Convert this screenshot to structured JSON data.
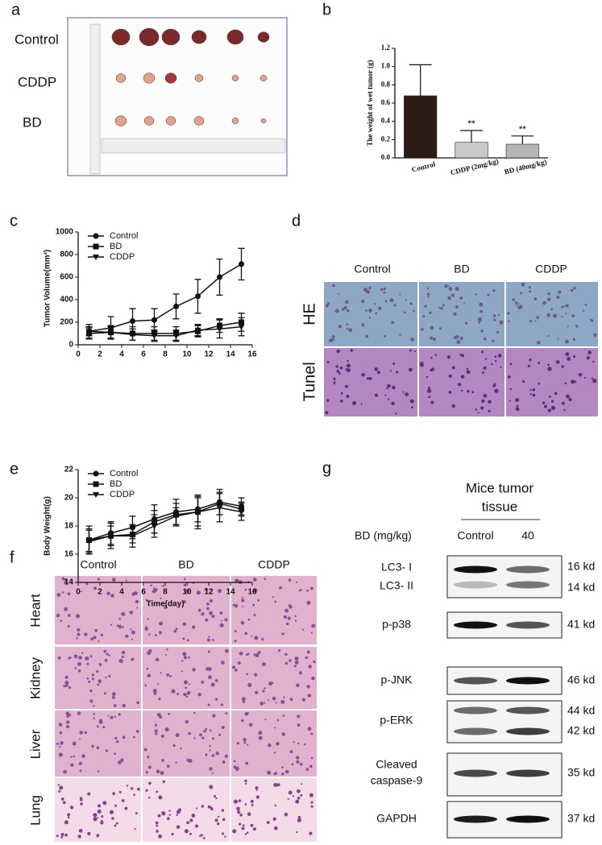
{
  "panels": {
    "a": {
      "label": "a",
      "rows": [
        "Control",
        "CDDP",
        "BD"
      ]
    },
    "b": {
      "label": "b"
    },
    "c": {
      "label": "c"
    },
    "d": {
      "label": "d",
      "columns": [
        "Control",
        "BD",
        "CDDP"
      ],
      "rows": [
        "HE",
        "Tunel"
      ]
    },
    "e": {
      "label": "e"
    },
    "f": {
      "label": "f",
      "columns": [
        "Control",
        "BD",
        "CDDP"
      ],
      "rows": [
        "Heart",
        "Kidney",
        "Liver",
        "Lung"
      ]
    },
    "g": {
      "label": "g",
      "title_lines": [
        "Mice tumor",
        "tissue"
      ],
      "dose_label": "BD (mg/kg)",
      "lanes": [
        "Control",
        "40"
      ],
      "blots": [
        {
          "names": [
            "LC3- I",
            "LC3- II"
          ],
          "sizes": [
            "16 kd",
            "14 kd"
          ]
        },
        {
          "names": [
            "p-p38"
          ],
          "sizes": [
            "41 kd"
          ]
        },
        {
          "names": [
            "p-JNK"
          ],
          "sizes": [
            "46 kd"
          ]
        },
        {
          "names": [
            "p-ERK"
          ],
          "sizes": [
            "44 kd",
            "42 kd"
          ]
        },
        {
          "names": [
            "Cleaved",
            "caspase-9"
          ],
          "sizes": [
            "35 kd"
          ]
        },
        {
          "names": [
            "GAPDH"
          ],
          "sizes": [
            "37 kd"
          ]
        }
      ]
    }
  },
  "chart_data": [
    {
      "type": "bar",
      "ylabel": "The weight of wet tumor (g)",
      "categories": [
        "Control",
        "CDDP (2mg/kg)",
        "BD (40mg/kg)"
      ],
      "values": [
        0.68,
        0.17,
        0.15
      ],
      "errors": [
        0.34,
        0.13,
        0.09
      ],
      "annotations": [
        null,
        "**",
        "**"
      ],
      "colors": [
        "#2b1b15",
        "#c9c9c9",
        "#b5b5b5"
      ],
      "ylim": [
        0,
        1.2
      ],
      "yticks": [
        {
          "value": 0,
          "label": "0.0"
        },
        0.2,
        0.4,
        0.6,
        0.8,
        {
          "value": 1,
          "label": "1.0"
        },
        1.2
      ]
    },
    {
      "type": "line",
      "ylabel": "Tumor Volume(mm³)",
      "legend": "upper left",
      "x": [
        1,
        3,
        5,
        7,
        9,
        11,
        13,
        15
      ],
      "xlim": [
        0,
        16
      ],
      "xticks": [
        0,
        2,
        4,
        6,
        8,
        10,
        12,
        14,
        16
      ],
      "ylim": [
        0,
        1000
      ],
      "yticks": [
        0,
        200,
        400,
        600,
        800,
        1000
      ],
      "series": [
        {
          "name": "Control",
          "marker": "circle",
          "color": "#111111",
          "values": [
            120,
            150,
            210,
            220,
            340,
            430,
            600,
            715
          ],
          "errors": [
            60,
            100,
            110,
            100,
            110,
            150,
            160,
            140
          ]
        },
        {
          "name": "BD",
          "marker": "square",
          "color": "#111111",
          "values": [
            100,
            110,
            100,
            100,
            100,
            120,
            170,
            200
          ],
          "errors": [
            50,
            60,
            60,
            60,
            60,
            50,
            60,
            80
          ]
        },
        {
          "name": "CDDP",
          "marker": "triangle-down",
          "color": "#111111",
          "values": [
            120,
            110,
            90,
            80,
            80,
            130,
            140,
            160
          ],
          "errors": [
            40,
            50,
            50,
            50,
            50,
            50,
            80,
            80
          ]
        }
      ]
    },
    {
      "type": "line",
      "ylabel": "Body Weight(g)",
      "xlabel": "Time(day)",
      "legend": "upper left",
      "x": [
        1,
        3,
        5,
        7,
        9,
        11,
        13,
        15
      ],
      "xlim": [
        0,
        16
      ],
      "xticks": [
        0,
        2,
        4,
        6,
        8,
        10,
        12,
        14,
        16
      ],
      "ylim": [
        14,
        22
      ],
      "yticks": [
        14,
        16,
        18,
        20,
        22
      ],
      "series": [
        {
          "name": "Control",
          "marker": "circle",
          "color": "#111111",
          "values": [
            17.0,
            17.5,
            17.9,
            18.5,
            19.0,
            19.2,
            19.7,
            19.4
          ],
          "errors": [
            1.0,
            0.8,
            0.8,
            1.0,
            0.9,
            0.9,
            0.9,
            0.6
          ]
        },
        {
          "name": "BD",
          "marker": "square",
          "color": "#111111",
          "values": [
            17.0,
            17.3,
            17.4,
            18.3,
            18.8,
            19.0,
            19.6,
            19.2
          ],
          "errors": [
            0.8,
            0.7,
            0.6,
            0.8,
            0.8,
            1.0,
            0.8,
            0.5
          ]
        },
        {
          "name": "CDDP",
          "marker": "triangle-down",
          "color": "#111111",
          "values": [
            16.9,
            17.3,
            17.3,
            18.0,
            18.7,
            19.0,
            19.3,
            19.0
          ],
          "errors": [
            0.8,
            0.9,
            0.8,
            0.8,
            0.6,
            1.2,
            1.0,
            0.6
          ]
        }
      ]
    }
  ]
}
